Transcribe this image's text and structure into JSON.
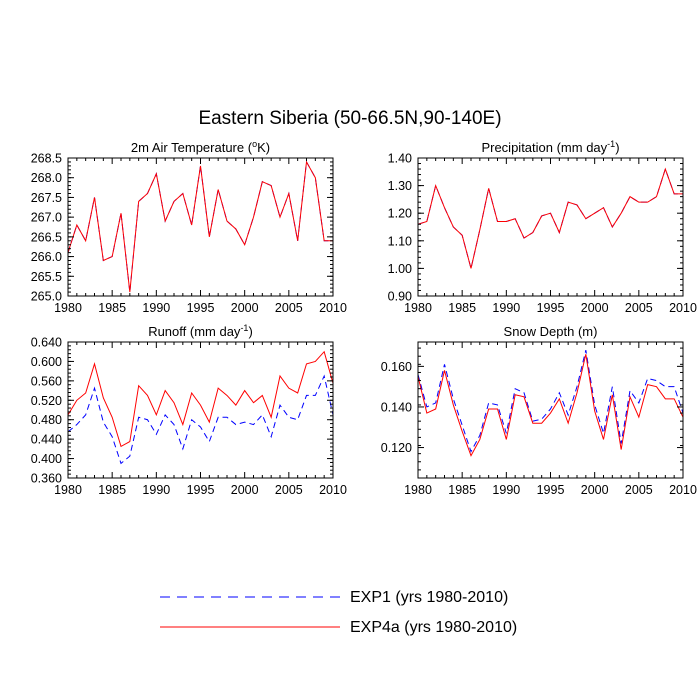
{
  "title": "Eastern Siberia (50-66.5N,90-140E)",
  "chart_data": [
    {
      "type": "line",
      "title": "2m Air Temperature (",
      "title_sup": "o",
      "title_end": "K)",
      "x": [
        1980,
        1981,
        1982,
        1983,
        1984,
        1985,
        1986,
        1987,
        1988,
        1989,
        1990,
        1991,
        1992,
        1993,
        1994,
        1995,
        1996,
        1997,
        1998,
        1999,
        2000,
        2001,
        2002,
        2003,
        2004,
        2005,
        2006,
        2007,
        2008,
        2009,
        2010
      ],
      "xlim": [
        1980,
        2010
      ],
      "xticks": [
        "1980",
        "1985",
        "1990",
        "1995",
        "2000",
        "2005",
        "2010"
      ],
      "ylim": [
        265.0,
        268.5
      ],
      "yticks": [
        "265.0",
        "265.5",
        "266.0",
        "266.5",
        "267.0",
        "267.5",
        "268.0",
        "268.5"
      ],
      "series": [
        {
          "name": "EXP1 (yrs 1980-2010)",
          "color": "#0000ff",
          "dash": true,
          "values": [
            266.1,
            266.8,
            266.4,
            267.5,
            265.9,
            266.0,
            267.1,
            265.1,
            267.4,
            267.6,
            268.1,
            266.9,
            267.4,
            267.6,
            266.8,
            268.3,
            266.5,
            267.7,
            266.9,
            266.7,
            266.3,
            267.0,
            267.9,
            267.8,
            267.0,
            267.6,
            266.4,
            268.4,
            268.0,
            266.4,
            266.4
          ]
        },
        {
          "name": "EXP4a (yrs 1980-2010)",
          "color": "#ff0000",
          "dash": false,
          "values": [
            266.1,
            266.8,
            266.4,
            267.5,
            265.9,
            266.0,
            267.1,
            265.1,
            267.4,
            267.6,
            268.1,
            266.9,
            267.4,
            267.6,
            266.8,
            268.3,
            266.5,
            267.7,
            266.9,
            266.7,
            266.3,
            267.0,
            267.9,
            267.8,
            267.0,
            267.6,
            266.4,
            268.4,
            268.0,
            266.4,
            266.4
          ]
        }
      ]
    },
    {
      "type": "line",
      "title": "Precipitation (mm day",
      "title_sup": "-1",
      "title_end": ")",
      "x": [
        1980,
        1981,
        1982,
        1983,
        1984,
        1985,
        1986,
        1987,
        1988,
        1989,
        1990,
        1991,
        1992,
        1993,
        1994,
        1995,
        1996,
        1997,
        1998,
        1999,
        2000,
        2001,
        2002,
        2003,
        2004,
        2005,
        2006,
        2007,
        2008,
        2009,
        2010
      ],
      "xlim": [
        1980,
        2010
      ],
      "xticks": [
        "1980",
        "1985",
        "1990",
        "1995",
        "2000",
        "2005",
        "2010"
      ],
      "ylim": [
        0.9,
        1.4
      ],
      "yticks": [
        "0.90",
        "1.00",
        "1.10",
        "1.20",
        "1.30",
        "1.40"
      ],
      "series": [
        {
          "name": "EXP1 (yrs 1980-2010)",
          "color": "#0000ff",
          "dash": true,
          "values": [
            1.16,
            1.17,
            1.3,
            1.22,
            1.15,
            1.12,
            1.0,
            1.14,
            1.29,
            1.17,
            1.17,
            1.18,
            1.11,
            1.13,
            1.19,
            1.2,
            1.13,
            1.24,
            1.23,
            1.18,
            1.2,
            1.22,
            1.15,
            1.2,
            1.26,
            1.24,
            1.24,
            1.26,
            1.36,
            1.27,
            1.27
          ]
        },
        {
          "name": "EXP4a (yrs 1980-2010)",
          "color": "#ff0000",
          "dash": false,
          "values": [
            1.16,
            1.17,
            1.3,
            1.22,
            1.15,
            1.12,
            1.0,
            1.14,
            1.29,
            1.17,
            1.17,
            1.18,
            1.11,
            1.13,
            1.19,
            1.2,
            1.13,
            1.24,
            1.23,
            1.18,
            1.2,
            1.22,
            1.15,
            1.2,
            1.26,
            1.24,
            1.24,
            1.26,
            1.36,
            1.27,
            1.27
          ]
        }
      ]
    },
    {
      "type": "line",
      "title": "Runoff (mm day",
      "title_sup": "-1",
      "title_end": ")",
      "x": [
        1980,
        1981,
        1982,
        1983,
        1984,
        1985,
        1986,
        1987,
        1988,
        1989,
        1990,
        1991,
        1992,
        1993,
        1994,
        1995,
        1996,
        1997,
        1998,
        1999,
        2000,
        2001,
        2002,
        2003,
        2004,
        2005,
        2006,
        2007,
        2008,
        2009,
        2010
      ],
      "xlim": [
        1980,
        2010
      ],
      "xticks": [
        "1980",
        "1985",
        "1990",
        "1995",
        "2000",
        "2005",
        "2010"
      ],
      "ylim": [
        0.36,
        0.64
      ],
      "yticks": [
        "0.360",
        "0.400",
        "0.440",
        "0.480",
        "0.520",
        "0.560",
        "0.600",
        "0.640"
      ],
      "series": [
        {
          "name": "EXP1 (yrs 1980-2010)",
          "color": "#0000ff",
          "dash": true,
          "values": [
            0.455,
            0.47,
            0.49,
            0.545,
            0.475,
            0.445,
            0.39,
            0.405,
            0.485,
            0.48,
            0.45,
            0.49,
            0.47,
            0.42,
            0.48,
            0.465,
            0.435,
            0.485,
            0.485,
            0.47,
            0.475,
            0.47,
            0.49,
            0.445,
            0.51,
            0.485,
            0.48,
            0.53,
            0.53,
            0.57,
            0.49
          ]
        },
        {
          "name": "EXP4a (yrs 1980-2010)",
          "color": "#ff0000",
          "dash": false,
          "values": [
            0.49,
            0.52,
            0.535,
            0.595,
            0.525,
            0.485,
            0.425,
            0.435,
            0.55,
            0.53,
            0.49,
            0.54,
            0.515,
            0.47,
            0.535,
            0.51,
            0.475,
            0.545,
            0.53,
            0.51,
            0.54,
            0.515,
            0.53,
            0.485,
            0.57,
            0.545,
            0.535,
            0.595,
            0.6,
            0.62,
            0.555
          ]
        }
      ]
    },
    {
      "type": "line",
      "title": "Snow Depth (m)",
      "title_sup": "",
      "title_end": "",
      "x": [
        1980,
        1981,
        1982,
        1983,
        1984,
        1985,
        1986,
        1987,
        1988,
        1989,
        1990,
        1991,
        1992,
        1993,
        1994,
        1995,
        1996,
        1997,
        1998,
        1999,
        2000,
        2001,
        2002,
        2003,
        2004,
        2005,
        2006,
        2007,
        2008,
        2009,
        2010
      ],
      "xlim": [
        1980,
        2010
      ],
      "xticks": [
        "1980",
        "1985",
        "1990",
        "1995",
        "2000",
        "2005",
        "2010"
      ],
      "ylim": [
        0.105,
        0.172
      ],
      "yticks": [
        "0.120",
        "0.140",
        "0.160"
      ],
      "ytick_values": [
        0.12,
        0.14,
        0.16
      ],
      "series": [
        {
          "name": "EXP1 (yrs 1980-2010)",
          "color": "#0000ff",
          "dash": true,
          "values": [
            0.156,
            0.14,
            0.142,
            0.161,
            0.144,
            0.131,
            0.118,
            0.126,
            0.142,
            0.141,
            0.127,
            0.149,
            0.147,
            0.133,
            0.134,
            0.139,
            0.147,
            0.136,
            0.15,
            0.168,
            0.141,
            0.127,
            0.15,
            0.122,
            0.148,
            0.142,
            0.154,
            0.153,
            0.15,
            0.15,
            0.137
          ]
        },
        {
          "name": "EXP4a (yrs 1980-2010)",
          "color": "#ff0000",
          "dash": false,
          "values": [
            0.155,
            0.137,
            0.139,
            0.158,
            0.141,
            0.128,
            0.116,
            0.124,
            0.139,
            0.139,
            0.124,
            0.146,
            0.145,
            0.132,
            0.132,
            0.137,
            0.144,
            0.132,
            0.147,
            0.166,
            0.138,
            0.124,
            0.146,
            0.119,
            0.145,
            0.135,
            0.151,
            0.15,
            0.144,
            0.144,
            0.135
          ]
        }
      ]
    }
  ],
  "legend": [
    {
      "label": "EXP1 (yrs 1980-2010)",
      "color": "#0000ff",
      "dash": true
    },
    {
      "label": "EXP4a (yrs 1980-2010)",
      "color": "#ff0000",
      "dash": false
    }
  ]
}
